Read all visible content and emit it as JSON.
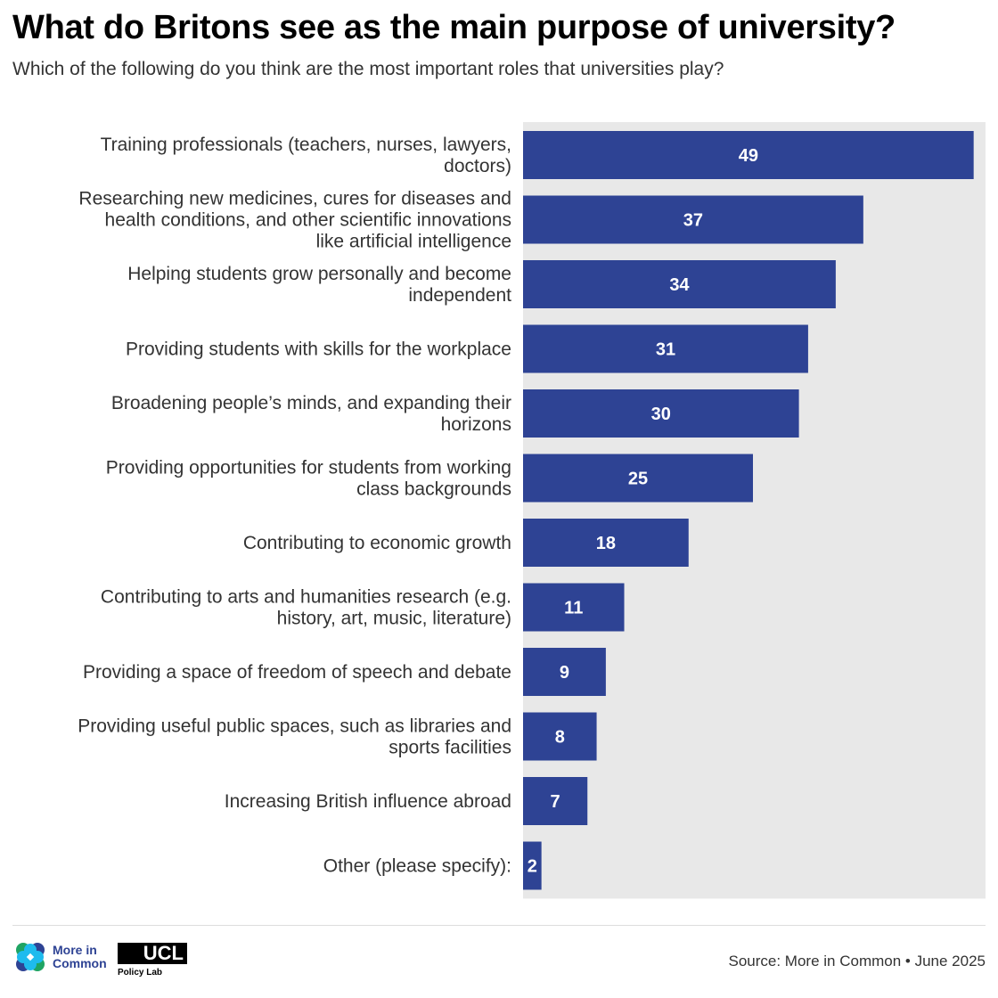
{
  "title": "What do Britons see as the main purpose of university?",
  "subtitle": "Which of the following do you think are the most important roles that universities play?",
  "chart_data": {
    "type": "bar",
    "orientation": "horizontal",
    "categories": [
      [
        "Training professionals (teachers, nurses, lawyers,",
        "doctors)"
      ],
      [
        "Researching new medicines, cures for diseases and",
        "health conditions, and other scientific innovations",
        "like artificial intelligence"
      ],
      [
        "Helping students grow personally and become",
        "independent"
      ],
      [
        "Providing students with skills for the workplace"
      ],
      [
        "Broadening people’s minds, and expanding their",
        "horizons"
      ],
      [
        "Providing opportunities for students from working",
        "class backgrounds"
      ],
      [
        "Contributing to economic growth"
      ],
      [
        "Contributing to arts and humanities research (e.g.",
        "history, art, music, literature)"
      ],
      [
        "Providing a space of freedom of speech and debate"
      ],
      [
        "Providing useful public spaces, such as libraries and",
        "sports facilities"
      ],
      [
        "Increasing British influence abroad"
      ],
      [
        "Other (please specify):"
      ]
    ],
    "values": [
      49,
      37,
      34,
      31,
      30,
      25,
      18,
      11,
      9,
      8,
      7,
      2
    ],
    "xlim": [
      0,
      50
    ],
    "bar_color": "#2E4394",
    "background_color": "#E8E8E8",
    "data_labels": true
  },
  "footer": {
    "source": "Source: More in Common • June 2025",
    "logo_mic": [
      "More in",
      "Common"
    ],
    "logo_ucl": "UCL",
    "logo_ucl_sub": "Policy Lab"
  }
}
